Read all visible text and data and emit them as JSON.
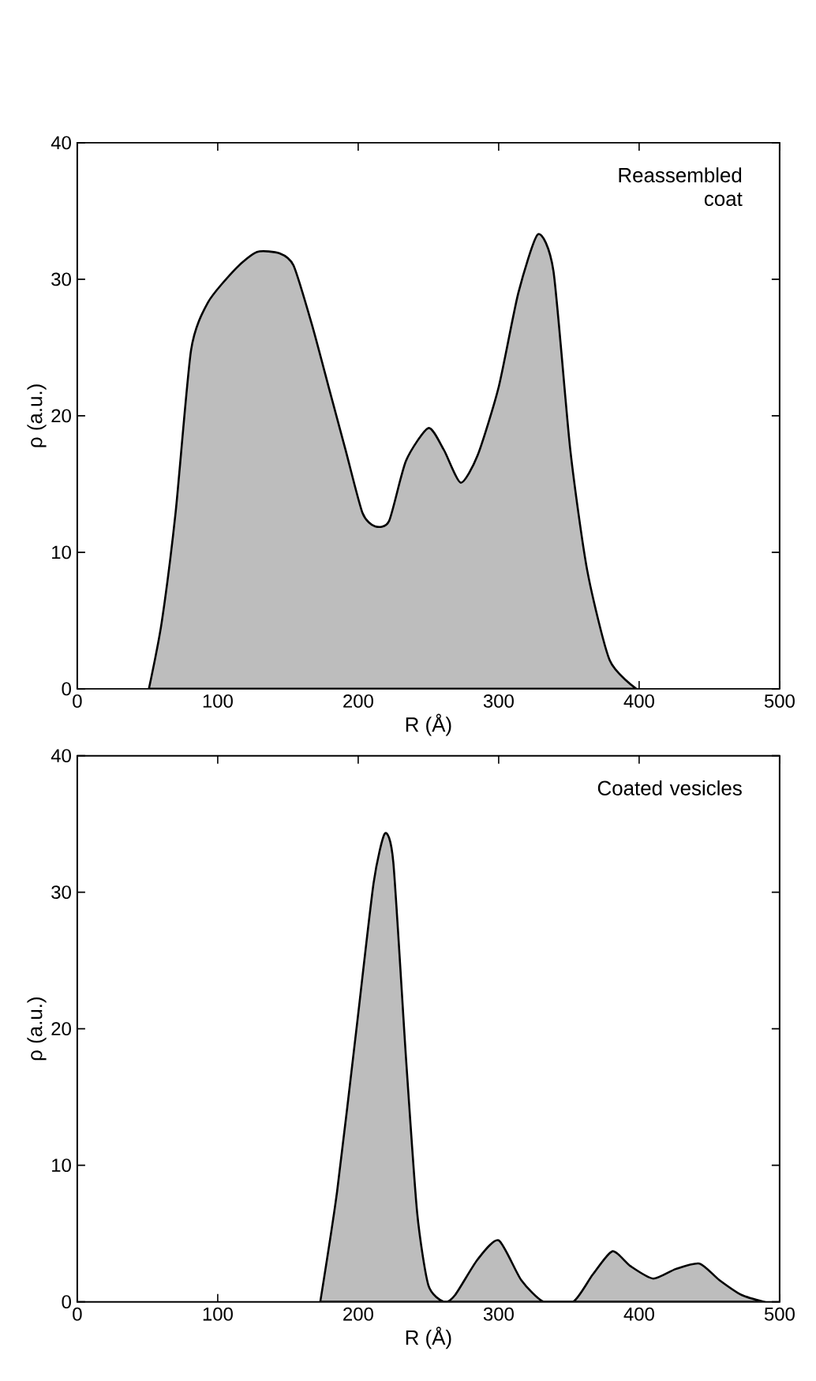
{
  "chart_data": [
    {
      "type": "area",
      "xlabel": "R (Å)",
      "ylabel": "ρ (a.u.)",
      "annotations": [
        "Reassembled coat"
      ],
      "xlim": [
        0,
        500
      ],
      "ylim": [
        0,
        40
      ],
      "xticks": [
        0,
        100,
        200,
        300,
        400,
        500
      ],
      "yticks": [
        0,
        10,
        20,
        30,
        40
      ],
      "series": [
        {
          "color": "#bdbdbd",
          "x": [
            51,
            60,
            70,
            81,
            93,
            113,
            128,
            144,
            154,
            167,
            179,
            191,
            203,
            212,
            222,
            234,
            250,
            261,
            273,
            285,
            300,
            314,
            328,
            339,
            351,
            363,
            379,
            398
          ],
          "values": [
            0,
            4.8,
            12.9,
            24.8,
            28.3,
            30.8,
            32.0,
            31.9,
            31.0,
            26.7,
            22.1,
            17.5,
            12.9,
            11.9,
            12.3,
            16.7,
            19.1,
            17.5,
            15.1,
            17.1,
            22.1,
            29.0,
            33.3,
            30.6,
            17.5,
            8.7,
            2.1,
            0
          ]
        }
      ]
    },
    {
      "type": "area",
      "xlabel": "R (Å)",
      "ylabel": "ρ (a.u.)",
      "annotations": [
        "Coated vesicles"
      ],
      "xlim": [
        0,
        500
      ],
      "ylim": [
        0,
        40
      ],
      "xticks": [
        0,
        100,
        200,
        300,
        400,
        500
      ],
      "yticks": [
        0,
        10,
        20,
        30,
        40
      ],
      "series": [
        {
          "color": "#bdbdbd",
          "x": [
            173,
            185,
            199,
            211,
            219,
            225,
            234,
            242,
            250,
            261,
            269,
            285,
            300,
            316,
            332,
            353,
            367,
            381,
            394,
            410,
            426,
            443,
            457,
            473,
            489
          ],
          "values": [
            0,
            8.1,
            20.2,
            30.7,
            34.3,
            32.2,
            17.9,
            6.5,
            1.2,
            0,
            0.5,
            3.1,
            4.5,
            1.6,
            0,
            0,
            2.0,
            3.7,
            2.6,
            1.7,
            2.4,
            2.8,
            1.6,
            0.5,
            0
          ]
        }
      ]
    }
  ]
}
